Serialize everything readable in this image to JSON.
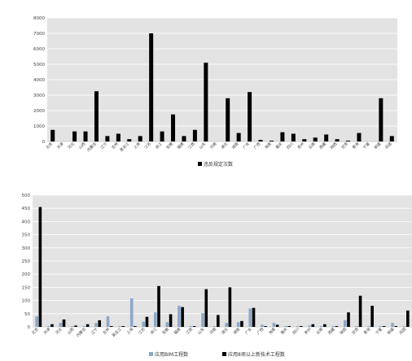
{
  "chart_data": [
    {
      "type": "bar",
      "ylim": [
        0,
        8000
      ],
      "yticks": [
        "0",
        "1000",
        "2000",
        "3000",
        "4000",
        "5000",
        "6000",
        "7000",
        "8000"
      ],
      "grid": true,
      "legend_position": "bottom",
      "categories": [
        "北京",
        "天津",
        "河北",
        "山西",
        "内蒙古",
        "辽宁",
        "吉林",
        "黑龙江",
        "上海",
        "江苏",
        "浙江",
        "安徽",
        "福建",
        "江西",
        "山东",
        "河南",
        "湖北",
        "湖南",
        "广东",
        "广西",
        "海南",
        "重庆",
        "四川",
        "贵州",
        "云南",
        "西藏",
        "陕西",
        "甘肃",
        "青海",
        "宁夏",
        "新疆",
        "兵团"
      ],
      "series": [
        {
          "name": "违反规定次数",
          "color": "#000000",
          "values": [
            750,
            0,
            650,
            650,
            3250,
            350,
            500,
            150,
            350,
            7000,
            650,
            1750,
            350,
            750,
            5100,
            0,
            2800,
            550,
            3200,
            100,
            50,
            600,
            500,
            150,
            250,
            450,
            150,
            50,
            550,
            0,
            2800,
            350
          ]
        }
      ]
    },
    {
      "type": "bar",
      "ylim": [
        0,
        500
      ],
      "yticks": [
        "0",
        "50",
        "100",
        "150",
        "200",
        "250",
        "300",
        "350",
        "400",
        "450",
        "500"
      ],
      "grid": true,
      "legend_position": "bottom",
      "categories": [
        "北京",
        "天津",
        "河北",
        "山西",
        "内蒙古",
        "辽宁",
        "吉林",
        "黑龙江",
        "上海",
        "江苏",
        "浙江",
        "安徽",
        "福建",
        "江西",
        "山东",
        "河南",
        "湖北",
        "湖南",
        "广东",
        "广西",
        "海南",
        "重庆",
        "四川",
        "贵州",
        "云南",
        "西藏",
        "陕西",
        "甘肃",
        "青海",
        "宁夏",
        "新疆",
        "兵团"
      ],
      "series": [
        {
          "name": "应用BIM工程数",
          "color": "#8aa8c8",
          "values": [
            40,
            3,
            15,
            3,
            3,
            15,
            40,
            3,
            108,
            20,
            55,
            18,
            80,
            3,
            52,
            3,
            15,
            18,
            70,
            8,
            15,
            3,
            3,
            5,
            3,
            3,
            25,
            3,
            3,
            3,
            15,
            3
          ]
        },
        {
          "name": "应用8项以上新技术工程数",
          "color": "#000000",
          "values": [
            455,
            10,
            28,
            5,
            10,
            25,
            3,
            3,
            3,
            38,
            155,
            48,
            75,
            3,
            143,
            45,
            150,
            22,
            72,
            3,
            8,
            3,
            3,
            10,
            10,
            3,
            55,
            118,
            80,
            3,
            3,
            62
          ]
        }
      ]
    }
  ]
}
